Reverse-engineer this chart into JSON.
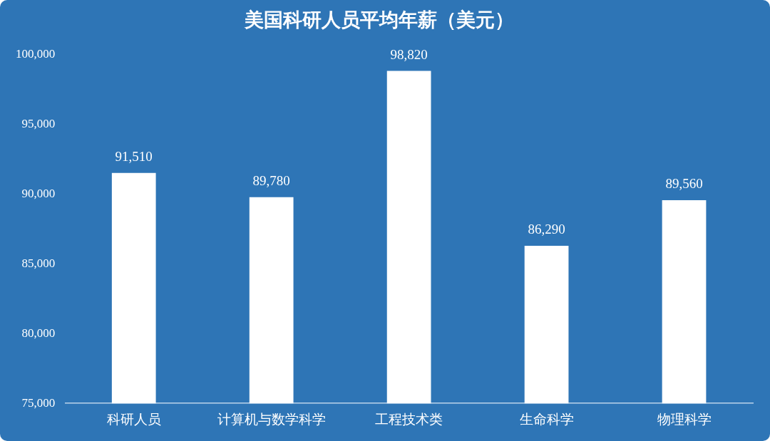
{
  "chart_data": {
    "type": "bar",
    "title": "美国科研人员平均年薪（美元）",
    "categories": [
      "科研人员",
      "计算机与数学科学",
      "工程技术类",
      "生命科学",
      "物理科学"
    ],
    "values": [
      91510,
      89780,
      98820,
      86290,
      89560
    ],
    "value_labels": [
      "91,510",
      "89,780",
      "98,820",
      "86,290",
      "89,560"
    ],
    "color": "#ffffff",
    "ylim": [
      75000,
      100000
    ],
    "yticks": [
      {
        "value": 75000,
        "label": "75,000"
      },
      {
        "value": 80000,
        "label": "80,000"
      },
      {
        "value": 85000,
        "label": "85,000"
      },
      {
        "value": 90000,
        "label": "90,000"
      },
      {
        "value": 95000,
        "label": "95,000"
      },
      {
        "value": 100000,
        "label": "100,000"
      }
    ],
    "grid": false,
    "legend": false
  }
}
